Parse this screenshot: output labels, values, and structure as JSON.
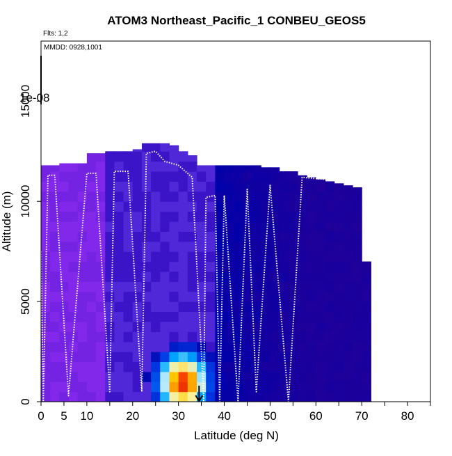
{
  "chart_data": {
    "type": "heatmap",
    "title": "ATOM3 Northeast_Pacific_1 CONBEU_GEOS5",
    "subtitle_flights": "Flts: 1,2",
    "subtitle_dates": "MMDD: 0928,1001",
    "xlabel": "Latitude (deg N)",
    "ylabel": "Altitude (m)",
    "xlim": [
      0,
      85
    ],
    "ylim": [
      0,
      18000
    ],
    "x_ticks": [
      0,
      5,
      10,
      15,
      20,
      25,
      30,
      35,
      40,
      45,
      50,
      55,
      60,
      65,
      70,
      75,
      80,
      85
    ],
    "x_tick_labels": [
      "0",
      "5",
      "10",
      "20",
      "30",
      "40",
      "50",
      "60",
      "70",
      "80"
    ],
    "x_tick_label_values": [
      0,
      5,
      10,
      20,
      30,
      40,
      50,
      60,
      70,
      80
    ],
    "y_ticks": [
      0,
      5000,
      10000,
      15000
    ],
    "y_tick_labels": [
      "0",
      "5000",
      "10000",
      "15000"
    ],
    "colorbar_label": "1e-08",
    "grid": false,
    "colors": {
      "low": "#0000a0",
      "mid_low": "#5a2fe0",
      "mid": "#00b4ff",
      "high": "#ffd200",
      "peak": "#d40000",
      "track": "#ffffff"
    },
    "altitude_bins": [
      0,
      500,
      1000,
      1500,
      2000,
      2500,
      3000,
      3500,
      4000,
      4500,
      5000,
      5500,
      6000,
      6500,
      7000,
      7500,
      8000,
      8500,
      9000,
      9500,
      10000,
      10500,
      11000,
      11500,
      12000,
      12500,
      13000
    ],
    "lat_bins": [
      0,
      2,
      4,
      6,
      8,
      10,
      12,
      14,
      16,
      18,
      20,
      22,
      24,
      26,
      28,
      30,
      32,
      34,
      36,
      38,
      40,
      42,
      44,
      46,
      48,
      50,
      52,
      54,
      56,
      58,
      60,
      62,
      64,
      66,
      68,
      70,
      72
    ],
    "column_tops": [
      11800,
      11800,
      11900,
      11900,
      11900,
      12400,
      12400,
      12500,
      12500,
      12500,
      12600,
      12900,
      12900,
      12900,
      12800,
      12500,
      12300,
      11800,
      11800,
      11800,
      11800,
      11800,
      11800,
      11800,
      11700,
      11700,
      11500,
      11500,
      11300,
      11200,
      11100,
      11000,
      10900,
      10800,
      10700,
      7000
    ],
    "plume": {
      "center_lat": 31,
      "center_alt": 1000,
      "lat_halfwidth": 7,
      "alt_halfwidth": 1800,
      "lat_range": [
        22,
        39
      ],
      "alt_range": [
        0,
        4300
      ]
    },
    "flight_track": [
      [
        0,
        7500
      ],
      [
        0.5,
        0
      ],
      [
        1.5,
        11300
      ],
      [
        3,
        11300
      ],
      [
        6,
        300
      ],
      [
        10,
        11400
      ],
      [
        12,
        11400
      ],
      [
        15,
        500
      ],
      [
        16,
        11500
      ],
      [
        19,
        11500
      ],
      [
        22,
        500
      ],
      [
        23,
        12400
      ],
      [
        25,
        12500
      ],
      [
        27,
        12000
      ],
      [
        30,
        11800
      ],
      [
        33,
        11200
      ],
      [
        35,
        2500
      ],
      [
        35.5,
        0
      ],
      [
        36,
        10200
      ],
      [
        38,
        10300
      ],
      [
        39,
        0
      ],
      [
        40,
        10300
      ],
      [
        43,
        0
      ],
      [
        45,
        10600
      ],
      [
        47,
        500
      ],
      [
        50,
        10800
      ],
      [
        54,
        0
      ],
      [
        57,
        11200
      ],
      [
        62,
        11100
      ],
      [
        71,
        11000
      ]
    ],
    "arrow_lat": 34.5,
    "arrow_alt_start": 800,
    "arrow_alt_end": 0
  }
}
